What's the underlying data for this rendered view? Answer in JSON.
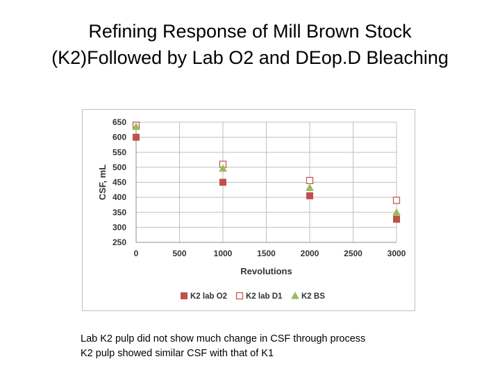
{
  "slide": {
    "title_line1": "Refining Response of Mill Brown Stock",
    "title_line2": "(K2)Followed by Lab O2 and DEop.D Bleaching"
  },
  "notes": [
    "Lab K2 pulp did not show much change in CSF through process",
    "K2 pulp showed similar CSF with that of K1"
  ],
  "chart_data": {
    "type": "scatter",
    "title": "",
    "xlabel": "Revolutions",
    "ylabel": "CSF, mL",
    "xlim": [
      0,
      3000
    ],
    "ylim": [
      250,
      650
    ],
    "xticks": [
      0,
      500,
      1000,
      1500,
      2000,
      2500,
      3000
    ],
    "yticks": [
      250,
      300,
      350,
      400,
      450,
      500,
      550,
      600,
      650
    ],
    "grid": true,
    "legend_position": "bottom",
    "series": [
      {
        "name": "K2 lab O2",
        "marker": "filled-square",
        "color": "#c0504d",
        "x": [
          0,
          1000,
          2000,
          3000
        ],
        "y": [
          600,
          450,
          405,
          327
        ]
      },
      {
        "name": "K2 lab D1",
        "marker": "open-square",
        "color": "#c0504d",
        "x": [
          0,
          1000,
          2000,
          3000
        ],
        "y": [
          640,
          510,
          456,
          390
        ]
      },
      {
        "name": "K2 BS",
        "marker": "triangle",
        "color": "#9bbb59",
        "x": [
          0,
          1000,
          2000,
          3000
        ],
        "y": [
          635,
          496,
          432,
          350
        ]
      }
    ]
  }
}
